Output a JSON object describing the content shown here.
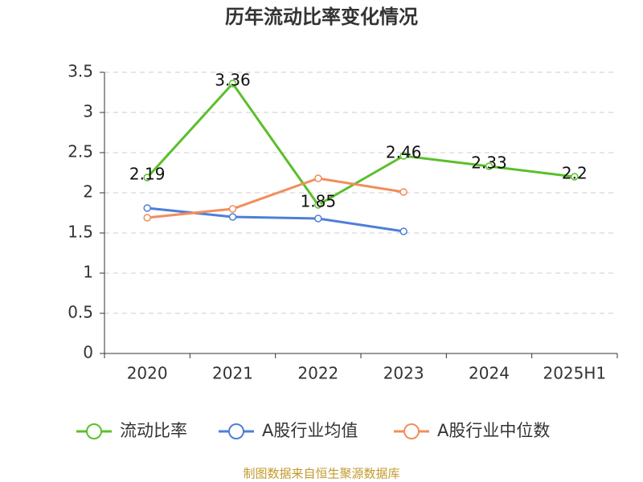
{
  "chart_data": {
    "type": "line",
    "title": "历年流动比率变化情况",
    "categories": [
      "2020",
      "2021",
      "2022",
      "2023",
      "2024",
      "2025H1"
    ],
    "series": [
      {
        "name": "流动比率",
        "color": "#5bbf2c",
        "values": [
          2.19,
          3.36,
          1.85,
          2.46,
          2.33,
          2.2
        ],
        "data_labels": true
      },
      {
        "name": "A股行业均值",
        "color": "#4e7fd8",
        "values": [
          1.81,
          1.7,
          1.68,
          1.52,
          null,
          null
        ]
      },
      {
        "name": "A股行业中位数",
        "color": "#f28d5b",
        "values": [
          1.69,
          1.8,
          2.18,
          2.01,
          null,
          null
        ]
      }
    ],
    "ylim": [
      0,
      3.5
    ],
    "yticks": [
      0,
      0.5,
      1,
      1.5,
      2,
      2.5,
      3,
      3.5
    ],
    "grid": true,
    "legend": "bottom",
    "source": "制图数据来自恒生聚源数据库"
  }
}
